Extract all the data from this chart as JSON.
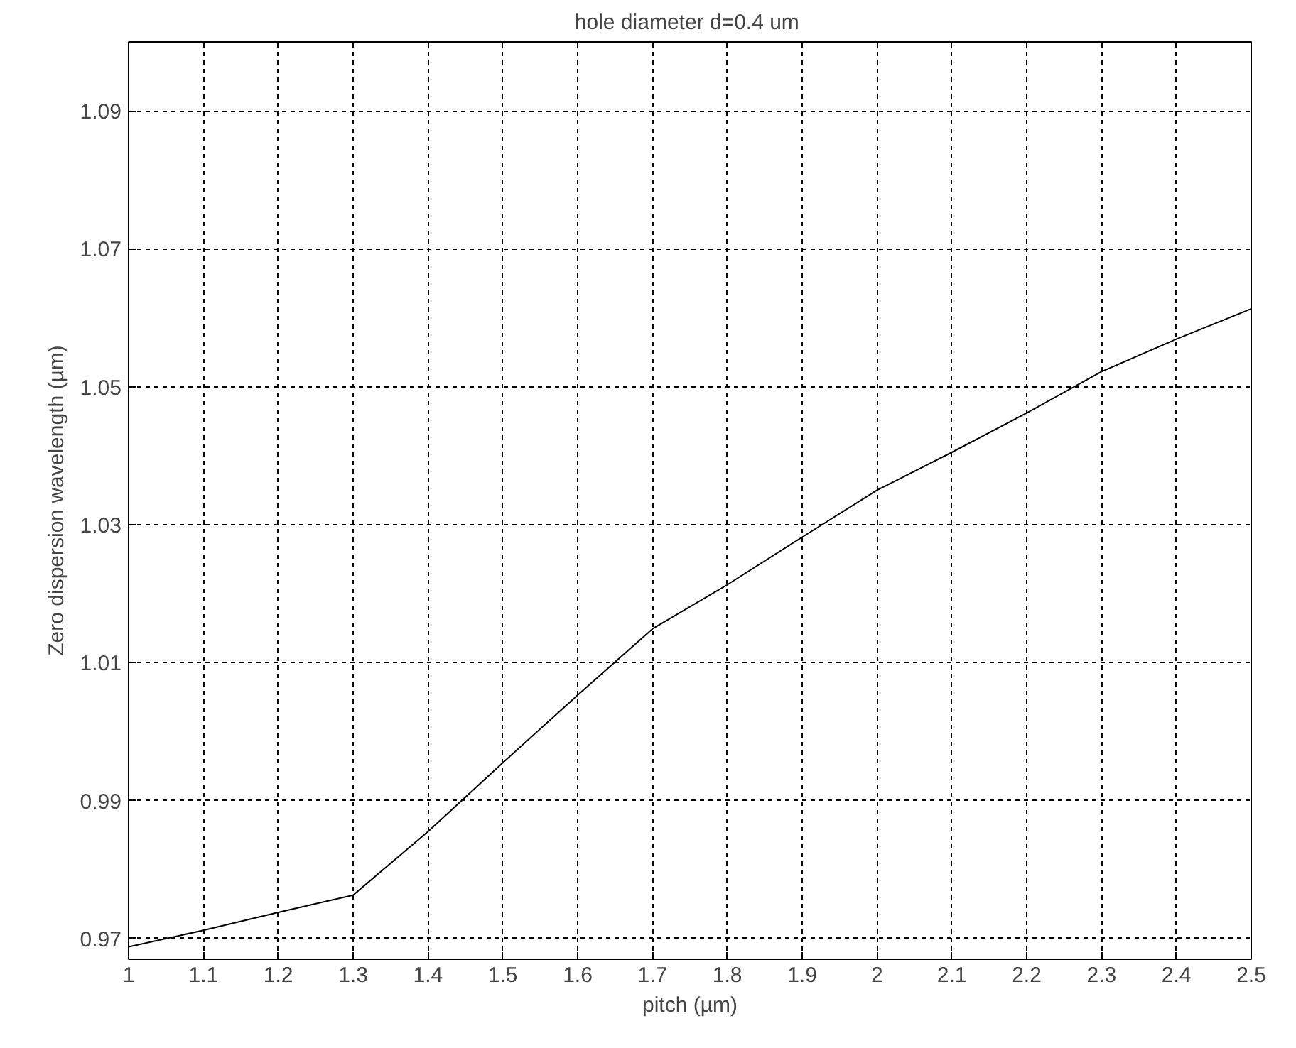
{
  "chart_data": {
    "type": "line",
    "title": "hole diameter  d=0.4 um",
    "xlabel": "pitch (µm)",
    "ylabel": "Zero dispersion wavelength (µm)",
    "x": [
      1.0,
      1.1,
      1.2,
      1.3,
      1.4,
      1.5,
      1.6,
      1.7,
      1.8,
      1.9,
      2.0,
      2.1,
      2.2,
      2.3,
      2.4,
      2.5
    ],
    "series": [
      {
        "color": "#000000",
        "values": [
          0.9688,
          0.9712,
          0.9738,
          0.9763,
          0.9855,
          0.9955,
          1.0053,
          1.0149,
          1.0213,
          1.0282,
          1.035,
          1.0405,
          1.0462,
          1.0522,
          1.0569,
          1.0613
        ]
      }
    ],
    "xlim": [
      1.0,
      2.5
    ],
    "xticks": [
      1,
      1.1,
      1.2,
      1.3,
      1.4,
      1.5,
      1.6,
      1.7,
      1.8,
      1.9,
      2,
      2.1,
      2.2,
      2.3,
      2.4,
      2.5
    ],
    "ylim": [
      0.967,
      1.1
    ],
    "yticks": [
      0.97,
      0.99,
      1.01,
      1.03,
      1.05,
      1.07,
      1.09
    ],
    "grid": true,
    "line_style": "solid",
    "marker": "none"
  }
}
